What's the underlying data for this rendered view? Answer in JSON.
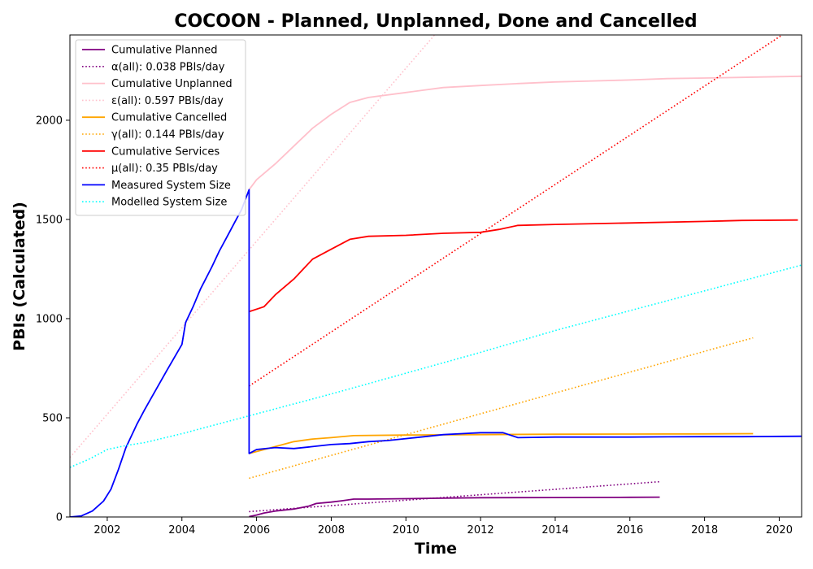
{
  "chart_data": {
    "type": "line",
    "title": "COCOON - Planned, Unplanned, Done  and Cancelled",
    "xlabel": "Time",
    "ylabel": "PBIs (Calculated)",
    "xlim": [
      2001.0,
      2020.6
    ],
    "ylim": [
      0,
      2430
    ],
    "x_ticks": [
      2002,
      2004,
      2006,
      2008,
      2010,
      2012,
      2014,
      2016,
      2018,
      2020
    ],
    "y_ticks": [
      0,
      500,
      1000,
      1500,
      2000
    ],
    "legend_position": "top-left",
    "grid": false,
    "series": [
      {
        "name": "Cumulative Planned",
        "color": "#800080",
        "style": "solid",
        "points": [
          [
            2005.8,
            2
          ],
          [
            2006.0,
            10
          ],
          [
            2006.2,
            20
          ],
          [
            2006.5,
            30
          ],
          [
            2007.0,
            40
          ],
          [
            2007.4,
            55
          ],
          [
            2007.6,
            68
          ],
          [
            2008.0,
            75
          ],
          [
            2008.3,
            82
          ],
          [
            2008.6,
            90
          ],
          [
            2009.0,
            90
          ],
          [
            2010.0,
            92
          ],
          [
            2011.0,
            95
          ],
          [
            2012.0,
            97
          ],
          [
            2014.0,
            98
          ],
          [
            2016.0,
            99
          ],
          [
            2016.8,
            100
          ]
        ]
      },
      {
        "name": "α(all): 0.038 PBIs/day",
        "color": "#800080",
        "style": "dotted",
        "points": [
          [
            2005.8,
            27
          ],
          [
            2016.8,
            178
          ]
        ]
      },
      {
        "name": "Cumulative Unplanned",
        "color": "#ffc0cb",
        "style": "solid",
        "points": [
          [
            2005.8,
            1650
          ],
          [
            2006.0,
            1700
          ],
          [
            2006.5,
            1780
          ],
          [
            2007.0,
            1870
          ],
          [
            2007.5,
            1960
          ],
          [
            2008.0,
            2030
          ],
          [
            2008.5,
            2090
          ],
          [
            2009.0,
            2115
          ],
          [
            2010.0,
            2140
          ],
          [
            2011.0,
            2165
          ],
          [
            2012.0,
            2175
          ],
          [
            2013.0,
            2185
          ],
          [
            2014.0,
            2193
          ],
          [
            2015.0,
            2198
          ],
          [
            2016.0,
            2203
          ],
          [
            2017.0,
            2210
          ],
          [
            2018.0,
            2213
          ],
          [
            2019.0,
            2216
          ],
          [
            2020.6,
            2222
          ]
        ]
      },
      {
        "name": "ε(all): 0.597 PBIs/day",
        "color": "#ffc0cb",
        "style": "dotted",
        "points": [
          [
            2001.0,
            300
          ],
          [
            2010.86,
            2450
          ]
        ]
      },
      {
        "name": "Cumulative Cancelled",
        "color": "#ffa500",
        "style": "solid",
        "points": [
          [
            2005.8,
            320
          ],
          [
            2006.0,
            330
          ],
          [
            2006.5,
            355
          ],
          [
            2007.0,
            380
          ],
          [
            2007.5,
            393
          ],
          [
            2008.0,
            400
          ],
          [
            2008.6,
            410
          ],
          [
            2010.0,
            413
          ],
          [
            2012.0,
            415
          ],
          [
            2014.0,
            417
          ],
          [
            2016.0,
            418
          ],
          [
            2018.0,
            419
          ],
          [
            2019.3,
            420
          ]
        ]
      },
      {
        "name": "γ(all): 0.144 PBIs/day",
        "color": "#ffa500",
        "style": "dotted",
        "points": [
          [
            2005.8,
            195
          ],
          [
            2019.3,
            903
          ]
        ]
      },
      {
        "name": "Cumulative Services",
        "color": "#ff0000",
        "style": "solid",
        "points": [
          [
            2005.8,
            1035
          ],
          [
            2006.2,
            1060
          ],
          [
            2006.5,
            1120
          ],
          [
            2007.0,
            1200
          ],
          [
            2007.5,
            1300
          ],
          [
            2008.0,
            1350
          ],
          [
            2008.5,
            1400
          ],
          [
            2009.0,
            1415
          ],
          [
            2010.0,
            1420
          ],
          [
            2011.0,
            1430
          ],
          [
            2012.0,
            1435
          ],
          [
            2012.5,
            1450
          ],
          [
            2013.0,
            1470
          ],
          [
            2014.0,
            1475
          ],
          [
            2016.0,
            1482
          ],
          [
            2018.0,
            1490
          ],
          [
            2019.0,
            1495
          ],
          [
            2020.5,
            1497
          ]
        ]
      },
      {
        "name": "μ(all): 0.35 PBIs/day",
        "color": "#ff0000",
        "style": "dotted",
        "points": [
          [
            2005.8,
            660
          ],
          [
            2020.24,
            2450
          ]
        ]
      },
      {
        "name": "Measured System Size",
        "color": "#0000ff",
        "style": "solid",
        "points": [
          [
            2001.0,
            0
          ],
          [
            2001.3,
            5
          ],
          [
            2001.6,
            30
          ],
          [
            2001.9,
            80
          ],
          [
            2002.1,
            140
          ],
          [
            2002.3,
            240
          ],
          [
            2002.5,
            350
          ],
          [
            2002.8,
            470
          ],
          [
            2003.0,
            540
          ],
          [
            2003.3,
            640
          ],
          [
            2003.6,
            740
          ],
          [
            2004.0,
            870
          ],
          [
            2004.1,
            980
          ],
          [
            2004.3,
            1060
          ],
          [
            2004.5,
            1150
          ],
          [
            2004.8,
            1260
          ],
          [
            2005.0,
            1340
          ],
          [
            2005.2,
            1410
          ],
          [
            2005.4,
            1480
          ],
          [
            2005.6,
            1550
          ],
          [
            2005.8,
            1650
          ],
          [
            2005.8,
            320
          ],
          [
            2006.0,
            340
          ],
          [
            2006.5,
            350
          ],
          [
            2007.0,
            345
          ],
          [
            2007.5,
            355
          ],
          [
            2008.0,
            365
          ],
          [
            2008.5,
            370
          ],
          [
            2009.0,
            380
          ],
          [
            2009.5,
            385
          ],
          [
            2010.0,
            395
          ],
          [
            2010.5,
            405
          ],
          [
            2011.0,
            415
          ],
          [
            2011.5,
            420
          ],
          [
            2012.0,
            425
          ],
          [
            2012.6,
            425
          ],
          [
            2013.0,
            400
          ],
          [
            2014.0,
            403
          ],
          [
            2015.0,
            403
          ],
          [
            2016.0,
            403
          ],
          [
            2017.0,
            404
          ],
          [
            2018.0,
            405
          ],
          [
            2019.0,
            405
          ],
          [
            2020.6,
            407
          ]
        ]
      },
      {
        "name": "Modelled System Size",
        "color": "#00ffff",
        "style": "dotted",
        "points": [
          [
            2001.0,
            250
          ],
          [
            2001.5,
            290
          ],
          [
            2002.0,
            340
          ],
          [
            2002.5,
            360
          ],
          [
            2003.0,
            375
          ],
          [
            2004.0,
            420
          ],
          [
            2005.0,
            470
          ],
          [
            2006.0,
            520
          ],
          [
            2008.0,
            620
          ],
          [
            2010.0,
            725
          ],
          [
            2012.0,
            830
          ],
          [
            2014.0,
            940
          ],
          [
            2016.0,
            1040
          ],
          [
            2018.0,
            1140
          ],
          [
            2020.6,
            1270
          ]
        ]
      }
    ]
  }
}
